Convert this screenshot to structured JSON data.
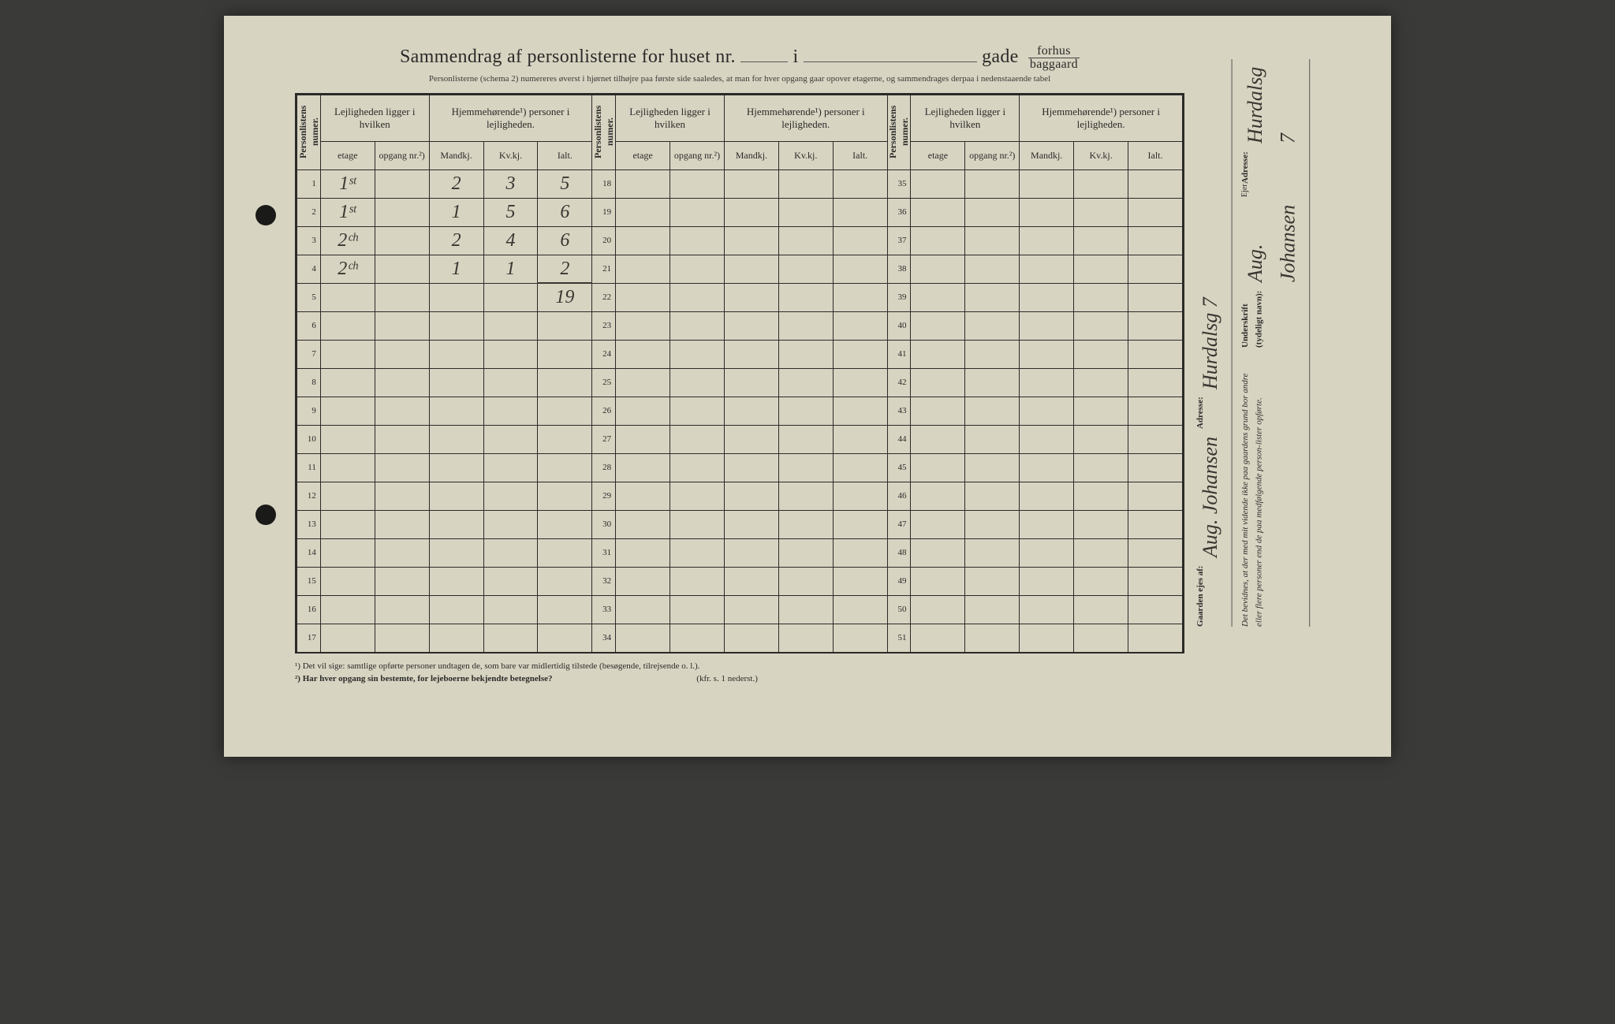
{
  "title": {
    "prefix": "Sammendrag af personlisterne for huset nr.",
    "mid": "i",
    "suffix": "gade",
    "fraction_top": "forhus",
    "fraction_bot": "baggaard"
  },
  "subtitle": "Personlisterne (schema 2) numereres øverst i hjørnet tilhøjre paa første side saaledes, at man for hver opgang gaar opover etagerne, og sammendrages derpaa i nedenstaaende tabel",
  "headers": {
    "numer": "Personlistens numer.",
    "lejlig": "Lejligheden ligger i hvilken",
    "hjemme": "Hjemmehørende¹) personer i lejligheden.",
    "etage": "etage",
    "opgang": "opgang nr.²)",
    "mandkj": "Mandkj.",
    "kvkj": "Kv.kj.",
    "ialt": "Ialt."
  },
  "rows": [
    {
      "n": "1",
      "etage": "1ˢᵗ",
      "m": "2",
      "k": "3",
      "i": "5"
    },
    {
      "n": "2",
      "etage": "1ˢᵗ",
      "m": "1",
      "k": "5",
      "i": "6"
    },
    {
      "n": "3",
      "etage": "2ᶜʰ",
      "m": "2",
      "k": "4",
      "i": "6"
    },
    {
      "n": "4",
      "etage": "2ᶜʰ",
      "m": "1",
      "k": "1",
      "i": "2"
    },
    {
      "n": "5",
      "etage": "",
      "m": "",
      "k": "",
      "i": "19",
      "total": true
    },
    {
      "n": "6"
    },
    {
      "n": "7"
    },
    {
      "n": "8"
    },
    {
      "n": "9"
    },
    {
      "n": "10"
    },
    {
      "n": "11"
    },
    {
      "n": "12"
    },
    {
      "n": "13"
    },
    {
      "n": "14"
    },
    {
      "n": "15"
    },
    {
      "n": "16"
    },
    {
      "n": "17"
    }
  ],
  "col2_nums": [
    "18",
    "19",
    "20",
    "21",
    "22",
    "23",
    "24",
    "25",
    "26",
    "27",
    "28",
    "29",
    "30",
    "31",
    "32",
    "33",
    "34"
  ],
  "col3_nums": [
    "35",
    "36",
    "37",
    "38",
    "39",
    "40",
    "41",
    "42",
    "43",
    "44",
    "45",
    "46",
    "47",
    "48",
    "49",
    "50",
    "51"
  ],
  "footnotes": {
    "f1": "¹)   Det vil sige: samtlige opførte personer undtagen de, som bare var midlertidig tilstede (besøgende, tilrejsende o. l.).",
    "f2": "²)   Har hver opgang sin bestemte, for lejeboerne bekjendte betegnelse?",
    "f2_right": "(kfr. s. 1 nederst.)"
  },
  "sidebar": {
    "owner_label": "Gaarden ejes af:",
    "owner_name": "Aug. Johansen",
    "owner_addr_label": "Adresse:",
    "owner_addr": "Hurdalsg 7",
    "attest": "Det bevidnes, at der med mit vidende ikke paa gaardens grund bor andre eller flere personer end de paa medfølgende person-lister opførte.",
    "sign_label": "Underskrift (tydeligt navn):",
    "sign_name": "Aug. Johansen",
    "sign_role": "Ejer",
    "sign_addr_label": "Adresse:",
    "sign_addr": "Hurdalsg 7"
  },
  "colors": {
    "paper": "#d8d4c2",
    "ink": "#2a2a28",
    "handwriting": "#3a3530",
    "background": "#3a3a38"
  }
}
